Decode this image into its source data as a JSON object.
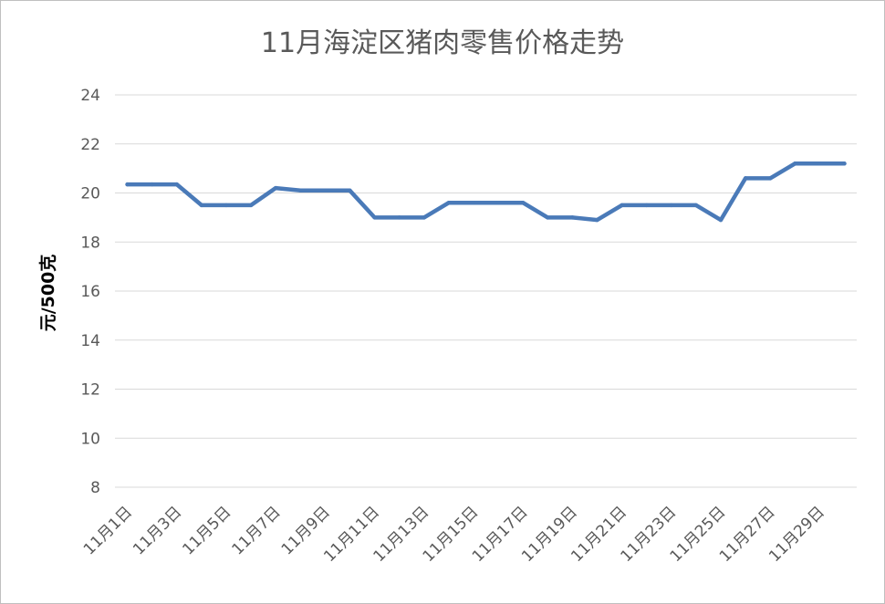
{
  "chart_data": {
    "type": "line",
    "title": "11月海淀区猪肉零售价格走势",
    "xlabel": "",
    "ylabel": "元/500克",
    "ylim": [
      8,
      24
    ],
    "yticks": [
      8,
      10,
      12,
      14,
      16,
      18,
      20,
      22,
      24
    ],
    "grid": true,
    "legend": "none",
    "x": [
      "11月1日",
      "11月2日",
      "11月3日",
      "11月4日",
      "11月5日",
      "11月6日",
      "11月7日",
      "11月8日",
      "11月9日",
      "11月10日",
      "11月11日",
      "11月12日",
      "11月13日",
      "11月14日",
      "11月15日",
      "11月16日",
      "11月17日",
      "11月18日",
      "11月19日",
      "11月20日",
      "11月21日",
      "11月22日",
      "11月23日",
      "11月24日",
      "11月25日",
      "11月26日",
      "11月27日",
      "11月28日",
      "11月29日",
      "11月30日"
    ],
    "x_tick_labels": [
      "11月1日",
      "11月3日",
      "11月5日",
      "11月7日",
      "11月9日",
      "11月11日",
      "11月13日",
      "11月15日",
      "11月17日",
      "11月19日",
      "11月21日",
      "11月23日",
      "11月25日",
      "11月27日",
      "11月29日"
    ],
    "series": [
      {
        "color": "#4a7ab8",
        "values": [
          20.35,
          20.35,
          20.35,
          19.5,
          19.5,
          19.5,
          20.2,
          20.1,
          20.1,
          20.1,
          19.0,
          19.0,
          19.0,
          19.6,
          19.6,
          19.6,
          19.6,
          19.0,
          19.0,
          18.9,
          19.5,
          19.5,
          19.5,
          19.5,
          18.9,
          20.6,
          20.6,
          21.2,
          21.2,
          21.2
        ]
      }
    ]
  }
}
